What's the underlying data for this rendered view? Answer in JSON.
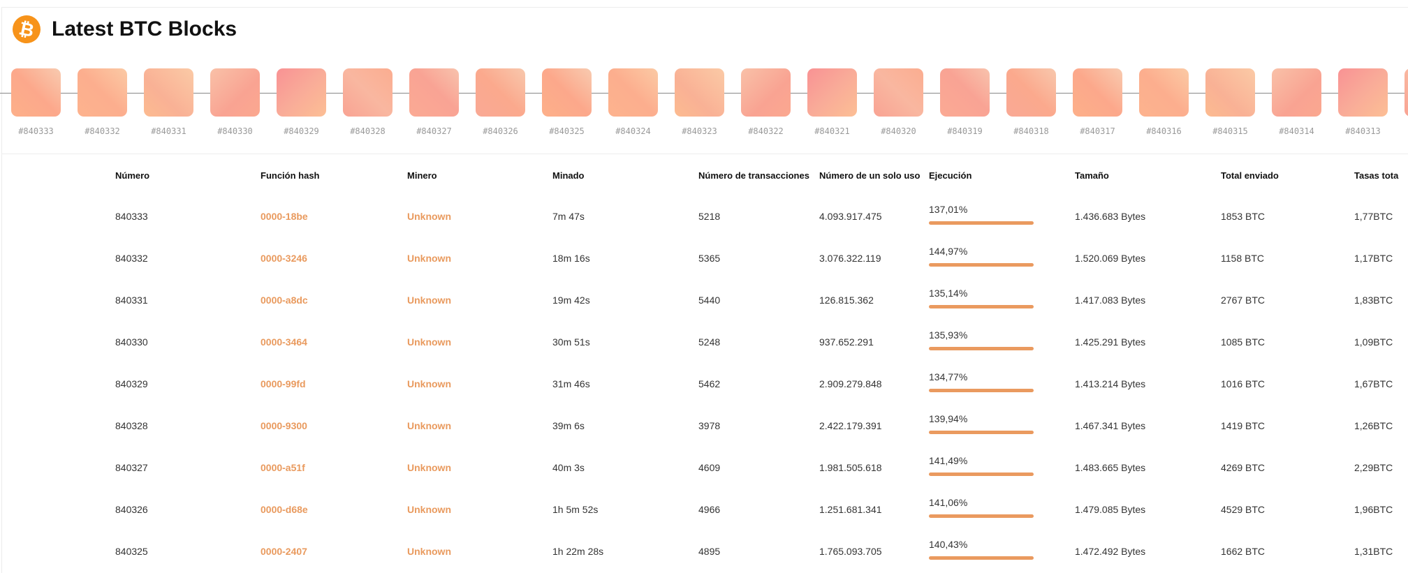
{
  "header": {
    "title": "Latest BTC Blocks",
    "icon": "bitcoin-icon",
    "icon_glyph": "₿"
  },
  "colors": {
    "accent": "#ea9a5f",
    "bitcoin": "#f7931a"
  },
  "chain": [
    "#840333",
    "#840332",
    "#840331",
    "#840330",
    "#840329",
    "#840328",
    "#840327",
    "#840326",
    "#840325",
    "#840324",
    "#840323",
    "#840322",
    "#840321",
    "#840320",
    "#840319",
    "#840318",
    "#840317",
    "#840316",
    "#840315",
    "#840314",
    "#840313",
    ""
  ],
  "columns": [
    "Número",
    "Función hash",
    "Minero",
    "Minado",
    "Número de transacciones",
    "Número de un solo uso",
    "Ejecución",
    "Tamaño",
    "Total enviado",
    "Tasas tota"
  ],
  "rows": [
    {
      "number": "840333",
      "hash": "0000-18be",
      "miner": "Unknown",
      "mined": "7m 47s",
      "txs": "5218",
      "nonce": "4.093.917.475",
      "exec": "137,01%",
      "exec_pct": 137.01,
      "size": "1.436.683 Bytes",
      "sent": "1853 BTC",
      "fees": "1,77BTC"
    },
    {
      "number": "840332",
      "hash": "0000-3246",
      "miner": "Unknown",
      "mined": "18m 16s",
      "txs": "5365",
      "nonce": "3.076.322.119",
      "exec": "144,97%",
      "exec_pct": 144.97,
      "size": "1.520.069 Bytes",
      "sent": "1158 BTC",
      "fees": "1,17BTC"
    },
    {
      "number": "840331",
      "hash": "0000-a8dc",
      "miner": "Unknown",
      "mined": "19m 42s",
      "txs": "5440",
      "nonce": "126.815.362",
      "exec": "135,14%",
      "exec_pct": 135.14,
      "size": "1.417.083 Bytes",
      "sent": "2767 BTC",
      "fees": "1,83BTC"
    },
    {
      "number": "840330",
      "hash": "0000-3464",
      "miner": "Unknown",
      "mined": "30m 51s",
      "txs": "5248",
      "nonce": "937.652.291",
      "exec": "135,93%",
      "exec_pct": 135.93,
      "size": "1.425.291 Bytes",
      "sent": "1085 BTC",
      "fees": "1,09BTC"
    },
    {
      "number": "840329",
      "hash": "0000-99fd",
      "miner": "Unknown",
      "mined": "31m 46s",
      "txs": "5462",
      "nonce": "2.909.279.848",
      "exec": "134,77%",
      "exec_pct": 134.77,
      "size": "1.413.214 Bytes",
      "sent": "1016 BTC",
      "fees": "1,67BTC"
    },
    {
      "number": "840328",
      "hash": "0000-9300",
      "miner": "Unknown",
      "mined": "39m 6s",
      "txs": "3978",
      "nonce": "2.422.179.391",
      "exec": "139,94%",
      "exec_pct": 139.94,
      "size": "1.467.341 Bytes",
      "sent": "1419 BTC",
      "fees": "1,26BTC"
    },
    {
      "number": "840327",
      "hash": "0000-a51f",
      "miner": "Unknown",
      "mined": "40m 3s",
      "txs": "4609",
      "nonce": "1.981.505.618",
      "exec": "141,49%",
      "exec_pct": 141.49,
      "size": "1.483.665 Bytes",
      "sent": "4269 BTC",
      "fees": "2,29BTC"
    },
    {
      "number": "840326",
      "hash": "0000-d68e",
      "miner": "Unknown",
      "mined": "1h 5m 52s",
      "txs": "4966",
      "nonce": "1.251.681.341",
      "exec": "141,06%",
      "exec_pct": 141.06,
      "size": "1.479.085 Bytes",
      "sent": "4529 BTC",
      "fees": "1,96BTC"
    },
    {
      "number": "840325",
      "hash": "0000-2407",
      "miner": "Unknown",
      "mined": "1h 22m 28s",
      "txs": "4895",
      "nonce": "1.765.093.705",
      "exec": "140,43%",
      "exec_pct": 140.43,
      "size": "1.472.492 Bytes",
      "sent": "1662 BTC",
      "fees": "1,31BTC"
    }
  ]
}
